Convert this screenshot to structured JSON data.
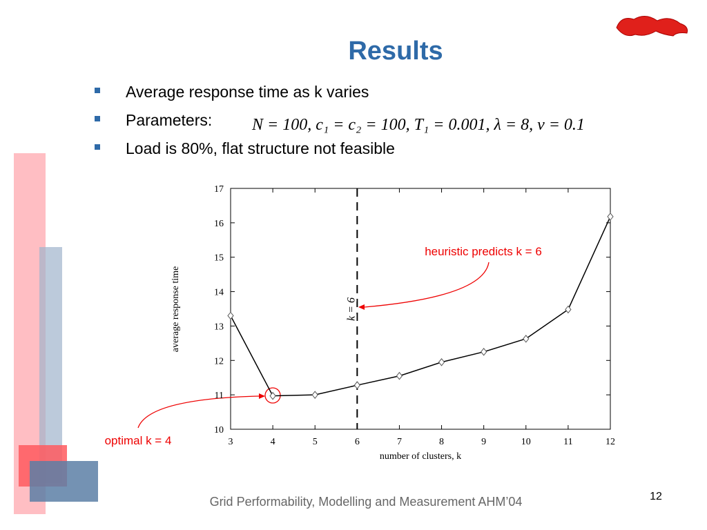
{
  "title": "Results",
  "bullets": [
    "Average response time as k varies",
    "Parameters:",
    "Load is 80%, flat structure not feasible"
  ],
  "parameters": "N = 100, c₁ = c₂ = 100, T₁ = 0.001, λ = 8, ν = 0.1",
  "footer": "Grid Performability, Modelling and Measurement  AHM’04",
  "page_number": "12",
  "chart_data": {
    "type": "line",
    "x": [
      3,
      4,
      5,
      6,
      7,
      8,
      9,
      10,
      11,
      12
    ],
    "values": [
      13.3,
      10.97,
      11.0,
      11.28,
      11.55,
      11.95,
      12.25,
      12.63,
      13.48,
      16.18
    ],
    "color": "#000000",
    "xlabel": "number of clusters, k",
    "ylabel": "average response time",
    "xlim": [
      3,
      12
    ],
    "xticks": [
      3,
      4,
      5,
      6,
      7,
      8,
      9,
      10,
      11,
      12
    ],
    "ylim": [
      10,
      17
    ],
    "yticks": [
      10,
      11,
      12,
      13,
      14,
      15,
      16,
      17
    ],
    "vline": 6,
    "vline_label": "k = 6",
    "annotations": [
      "heuristic predicts k = 6",
      "optimal k = 4"
    ]
  }
}
